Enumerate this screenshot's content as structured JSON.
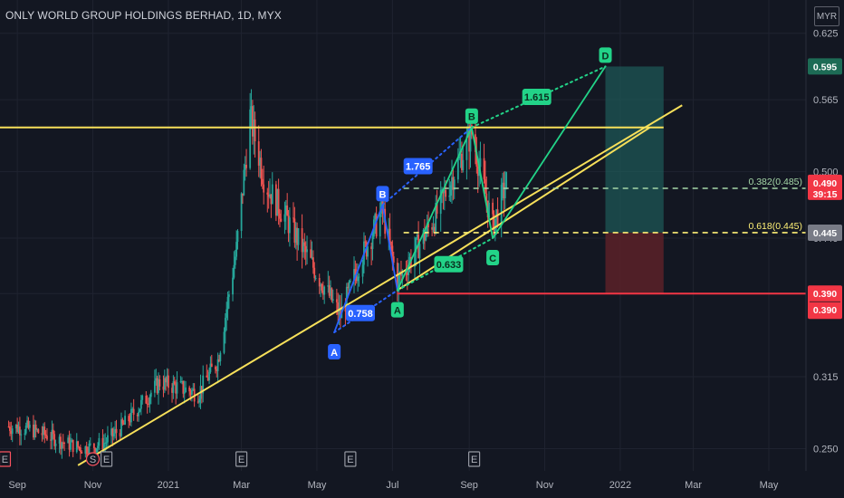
{
  "header": {
    "title": "ONLY WORLD GROUP HOLDINGS BERHAD, 1D, MYX",
    "currency": "MYR"
  },
  "colors": {
    "background": "#131722",
    "up_candle": "#26a69a",
    "down_candle": "#ef5350",
    "trendline": "#f7e05a",
    "support_line": "#f23645",
    "pattern_blue": "#2962ff",
    "pattern_green": "#22d388",
    "target_zone": "#1e5b58",
    "stop_zone": "#5c2128"
  },
  "chart_data": {
    "type": "candlestick",
    "symbol": "ONLY WORLD GROUP HOLDINGS BERHAD",
    "interval": "1D",
    "exchange": "MYX",
    "currency": "MYR",
    "ylim": [
      0.23,
      0.655
    ],
    "x_ticks": [
      "Sep",
      "Nov",
      "2021",
      "Mar",
      "May",
      "Jul",
      "Sep",
      "Nov",
      "2022",
      "Mar",
      "May"
    ],
    "y_ticks": [
      0.625,
      0.565,
      0.5,
      0.44,
      0.39,
      0.315,
      0.25
    ],
    "y_tick_labels": [
      "0.625",
      "0.565",
      "0.500",
      "0.440",
      "0.390",
      "0.315",
      "0.250"
    ],
    "price_scale_labels": [
      {
        "value": 0.595,
        "text": "0.595",
        "style": "target"
      },
      {
        "value": 0.49,
        "text": "0.490",
        "sub": "39:15",
        "style": "last"
      },
      {
        "value": 0.445,
        "text": "0.445",
        "style": "neutral"
      },
      {
        "value": 0.39,
        "text": "0.390",
        "style": "stop"
      }
    ],
    "horizontal_lines": [
      {
        "value": 0.54,
        "style": "resistance"
      },
      {
        "value": 0.39,
        "style": "support"
      }
    ],
    "fib_levels": [
      {
        "value": 0.485,
        "label": "0.382(0.485)"
      },
      {
        "value": 0.445,
        "label": "0.618(0.445)"
      }
    ],
    "trendlines": [
      {
        "x1": "2020-10-20",
        "y1": 0.235,
        "x2": "2022-02-20",
        "y2": 0.56
      },
      {
        "x1": "2021-07-05",
        "y1": 0.393,
        "x2": "2022-01-25",
        "y2": 0.54
      }
    ],
    "pattern_points": [
      {
        "label": "A",
        "date": "2021-05-15",
        "value": 0.355,
        "color": "blue"
      },
      {
        "label": "B",
        "date": "2021-06-23",
        "value": 0.47,
        "color": "blue"
      },
      {
        "label": "A",
        "date": "2021-07-05",
        "value": 0.393,
        "color": "green"
      },
      {
        "label": "B",
        "date": "2021-09-03",
        "value": 0.54,
        "color": "green"
      },
      {
        "label": "C",
        "date": "2021-09-20",
        "value": 0.44,
        "color": "green"
      },
      {
        "label": "D",
        "date": "2021-12-20",
        "value": 0.595,
        "color": "green"
      }
    ],
    "ratios": [
      {
        "text": "0.758",
        "color": "blue"
      },
      {
        "text": "1.765",
        "color": "blue"
      },
      {
        "text": "0.633",
        "color": "green"
      },
      {
        "text": "1.615",
        "color": "green"
      }
    ],
    "position": {
      "entry": 0.445,
      "target": 0.595,
      "stop": 0.39,
      "start": "2021-12-20",
      "end": "2022-02-05"
    },
    "event_markers": [
      "E",
      "S",
      "E",
      "E",
      "E",
      "E"
    ],
    "ohlc_daily": [
      {
        "date": "2020-08-25",
        "close": 0.27
      },
      {
        "date": "2020-09-10",
        "close": 0.268
      },
      {
        "date": "2020-09-25",
        "close": 0.262
      },
      {
        "date": "2020-10-10",
        "close": 0.255
      },
      {
        "date": "2020-10-25",
        "close": 0.25
      },
      {
        "date": "2020-11-10",
        "close": 0.255
      },
      {
        "date": "2020-11-25",
        "close": 0.27
      },
      {
        "date": "2020-12-10",
        "close": 0.29
      },
      {
        "date": "2020-12-25",
        "close": 0.31
      },
      {
        "date": "2021-01-10",
        "close": 0.305
      },
      {
        "date": "2021-01-25",
        "close": 0.3
      },
      {
        "date": "2021-02-10",
        "close": 0.33
      },
      {
        "date": "2021-02-25",
        "close": 0.43
      },
      {
        "date": "2021-03-08",
        "close": 0.55
      },
      {
        "date": "2021-03-20",
        "close": 0.49
      },
      {
        "date": "2021-04-05",
        "close": 0.46
      },
      {
        "date": "2021-04-20",
        "close": 0.43
      },
      {
        "date": "2021-05-05",
        "close": 0.4
      },
      {
        "date": "2021-05-20",
        "close": 0.37
      },
      {
        "date": "2021-06-05",
        "close": 0.42
      },
      {
        "date": "2021-06-23",
        "close": 0.465
      },
      {
        "date": "2021-07-05",
        "close": 0.4
      },
      {
        "date": "2021-07-20",
        "close": 0.43
      },
      {
        "date": "2021-08-05",
        "close": 0.46
      },
      {
        "date": "2021-08-20",
        "close": 0.5
      },
      {
        "date": "2021-09-03",
        "close": 0.535
      },
      {
        "date": "2021-09-20",
        "close": 0.45
      },
      {
        "date": "2021-10-01",
        "close": 0.49
      }
    ]
  }
}
